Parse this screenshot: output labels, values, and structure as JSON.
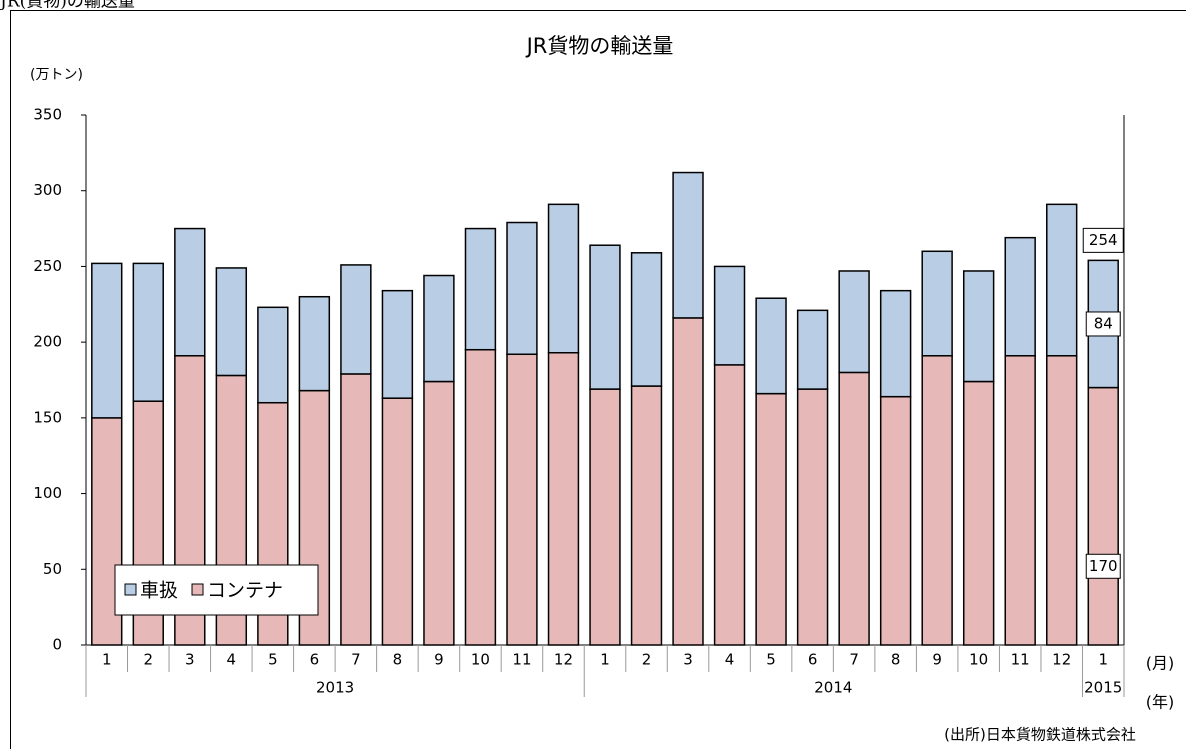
{
  "caption": "JR(貨物)の輸送量",
  "chart_data": {
    "type": "stacked_bar",
    "title": "JR貨物の輸送量",
    "y_label": "(万トン)",
    "x_label": "(月)",
    "x_group_label": "(年)",
    "source": "(出所)日本貨物鉄道株式会社",
    "categories": [
      "1",
      "2",
      "3",
      "4",
      "5",
      "6",
      "7",
      "8",
      "9",
      "10",
      "11",
      "12",
      "1",
      "2",
      "3",
      "4",
      "5",
      "6",
      "7",
      "8",
      "9",
      "10",
      "11",
      "12",
      "1"
    ],
    "x_groups": [
      {
        "label": "2013",
        "size": 12
      },
      {
        "label": "2014",
        "size": 12
      },
      {
        "label": "2015",
        "size": 1
      }
    ],
    "series": [
      {
        "name": "コンテナ",
        "color": "#e6b9b8",
        "values": [
          150,
          161,
          191,
          178,
          160,
          168,
          179,
          163,
          174,
          195,
          192,
          193,
          169,
          171,
          216,
          185,
          166,
          169,
          180,
          164,
          191,
          174,
          191,
          191,
          170
        ]
      },
      {
        "name": "車扱",
        "color": "#b9cde5",
        "values": [
          102,
          91,
          84,
          71,
          63,
          62,
          72,
          71,
          70,
          80,
          87,
          98,
          95,
          88,
          96,
          65,
          63,
          52,
          67,
          70,
          69,
          73,
          78,
          100,
          84
        ]
      }
    ],
    "data_labels": {
      "category_index": 24,
      "total": 254
    },
    "ylim": [
      0,
      350
    ],
    "yticks": [
      0,
      50,
      100,
      150,
      200,
      250,
      300,
      350
    ],
    "grid": false,
    "legend": "lower-left"
  }
}
